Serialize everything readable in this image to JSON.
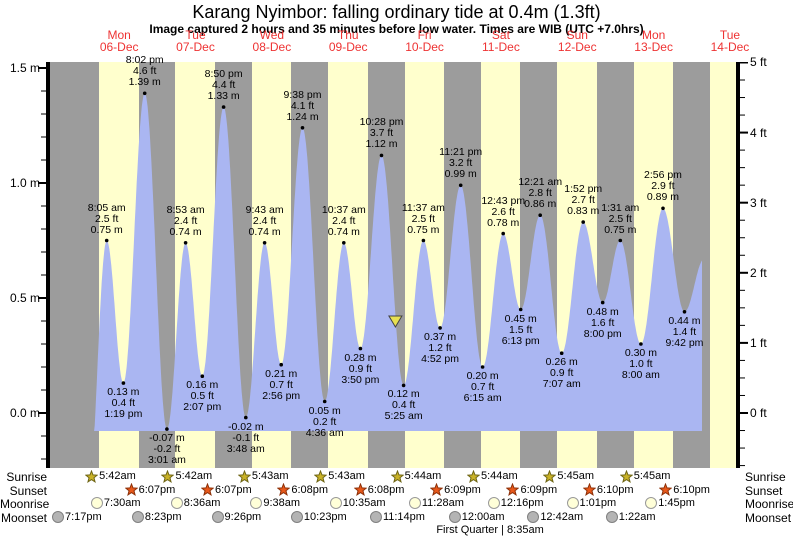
{
  "header": {
    "title": "Karang Nyimbor: falling  ordinary tide at 0.4m (1.3ft)",
    "subtitle": "Image captured 2 hours and 35 minutes before low water. Times are WIB (UTC +7.0hrs)"
  },
  "day_labels": [
    {
      "name": "Mon",
      "date": "06-Dec"
    },
    {
      "name": "Tue",
      "date": "07-Dec"
    },
    {
      "name": "Wed",
      "date": "08-Dec"
    },
    {
      "name": "Thu",
      "date": "09-Dec"
    },
    {
      "name": "Fri",
      "date": "10-Dec"
    },
    {
      "name": "Sat",
      "date": "11-Dec"
    },
    {
      "name": "Sun",
      "date": "12-Dec"
    },
    {
      "name": "Mon",
      "date": "13-Dec"
    },
    {
      "name": "Tue",
      "date": "14-Dec"
    }
  ],
  "axis": {
    "left_labels": [
      {
        "text": "1.5 m",
        "m": 1.5
      },
      {
        "text": "1.0 m",
        "m": 1.0
      },
      {
        "text": "0.5 m",
        "m": 0.5
      },
      {
        "text": "0.0 m",
        "m": 0.0
      }
    ],
    "right_labels": [
      {
        "text": "5 ft",
        "ft": 5
      },
      {
        "text": "4 ft",
        "ft": 4
      },
      {
        "text": "3 ft",
        "ft": 3
      },
      {
        "text": "2 ft",
        "ft": 2
      },
      {
        "text": "1 ft",
        "ft": 1
      },
      {
        "text": "0 ft",
        "ft": 0
      }
    ]
  },
  "chart_data": {
    "type": "area",
    "title": "Karang Nyimbor: falling ordinary tide at 0.4m (1.3ft)",
    "ylabel_left": "meters",
    "ylabel_right": "feet",
    "ylim_m": [
      -0.24,
      1.53
    ],
    "x_days": [
      "Mon 06-Dec",
      "Tue 07-Dec",
      "Wed 08-Dec",
      "Thu 09-Dec",
      "Fri 10-Dec",
      "Sat 11-Dec",
      "Sun 12-Dec",
      "Mon 13-Dec",
      "Tue 14-Dec"
    ],
    "tide_events": [
      {
        "day": 0,
        "time": "8:05 am",
        "ft_label": "2.5 ft",
        "m_label": "0.75 m",
        "m": 0.75,
        "type": "high"
      },
      {
        "day": 0,
        "time": "1:19 pm",
        "ft_label": "0.4 ft",
        "m_label": "0.13 m",
        "m": 0.13,
        "type": "low"
      },
      {
        "day": 0,
        "time": "8:02 pm",
        "ft_label": "4.6 ft",
        "m_label": "1.39 m",
        "m": 1.39,
        "type": "high"
      },
      {
        "day": 1,
        "time": "3:01 am",
        "ft_label": "-0.2 ft",
        "m_label": "-0.07 m",
        "m": -0.07,
        "type": "low"
      },
      {
        "day": 1,
        "time": "8:53 am",
        "ft_label": "2.4 ft",
        "m_label": "0.74 m",
        "m": 0.74,
        "type": "high"
      },
      {
        "day": 1,
        "time": "2:07 pm",
        "ft_label": "0.5 ft",
        "m_label": "0.16 m",
        "m": 0.16,
        "type": "low"
      },
      {
        "day": 1,
        "time": "8:50 pm",
        "ft_label": "4.4 ft",
        "m_label": "1.33 m",
        "m": 1.33,
        "type": "high"
      },
      {
        "day": 2,
        "time": "3:48 am",
        "ft_label": "-0.1 ft",
        "m_label": "-0.02 m",
        "m": -0.02,
        "type": "low"
      },
      {
        "day": 2,
        "time": "9:43 am",
        "ft_label": "2.4 ft",
        "m_label": "0.74 m",
        "m": 0.74,
        "type": "high"
      },
      {
        "day": 2,
        "time": "2:56 pm",
        "ft_label": "0.7 ft",
        "m_label": "0.21 m",
        "m": 0.21,
        "type": "low"
      },
      {
        "day": 2,
        "time": "9:38 pm",
        "ft_label": "4.1 ft",
        "m_label": "1.24 m",
        "m": 1.24,
        "type": "high"
      },
      {
        "day": 3,
        "time": "4:36 am",
        "ft_label": "0.2 ft",
        "m_label": "0.05 m",
        "m": 0.05,
        "type": "low"
      },
      {
        "day": 3,
        "time": "10:37 am",
        "ft_label": "2.4 ft",
        "m_label": "0.74 m",
        "m": 0.74,
        "type": "high"
      },
      {
        "day": 3,
        "time": "3:50 pm",
        "ft_label": "0.9 ft",
        "m_label": "0.28 m",
        "m": 0.28,
        "type": "low"
      },
      {
        "day": 3,
        "time": "10:28 pm",
        "ft_label": "3.7 ft",
        "m_label": "1.12 m",
        "m": 1.12,
        "type": "high"
      },
      {
        "day": 4,
        "time": "5:25 am",
        "ft_label": "0.4 ft",
        "m_label": "0.12 m",
        "m": 0.12,
        "type": "low"
      },
      {
        "day": 4,
        "time": "11:37 am",
        "ft_label": "2.5 ft",
        "m_label": "0.75 m",
        "m": 0.75,
        "type": "high"
      },
      {
        "day": 4,
        "time": "4:52 pm",
        "ft_label": "1.2 ft",
        "m_label": "0.37 m",
        "m": 0.37,
        "type": "low"
      },
      {
        "day": 4,
        "time": "11:21 pm",
        "ft_label": "3.2 ft",
        "m_label": "0.99 m",
        "m": 0.99,
        "type": "high"
      },
      {
        "day": 5,
        "time": "6:15 am",
        "ft_label": "0.7 ft",
        "m_label": "0.20 m",
        "m": 0.2,
        "type": "low"
      },
      {
        "day": 5,
        "time": "12:43 pm",
        "ft_label": "2.6 ft",
        "m_label": "0.78 m",
        "m": 0.78,
        "type": "high"
      },
      {
        "day": 5,
        "time": "6:13 pm",
        "ft_label": "1.5 ft",
        "m_label": "0.45 m",
        "m": 0.45,
        "type": "low"
      },
      {
        "day": 6,
        "time": "12:21 am",
        "ft_label": "2.8 ft",
        "m_label": "0.86 m",
        "m": 0.86,
        "type": "high"
      },
      {
        "day": 6,
        "time": "7:07 am",
        "ft_label": "0.9 ft",
        "m_label": "0.26 m",
        "m": 0.26,
        "type": "low"
      },
      {
        "day": 6,
        "time": "1:52 pm",
        "ft_label": "2.7 ft",
        "m_label": "0.83 m",
        "m": 0.83,
        "type": "high"
      },
      {
        "day": 6,
        "time": "8:00 pm",
        "ft_label": "1.6 ft",
        "m_label": "0.48 m",
        "m": 0.48,
        "type": "low"
      },
      {
        "day": 7,
        "time": "1:31 am",
        "ft_label": "2.5 ft",
        "m_label": "0.75 m",
        "m": 0.75,
        "type": "high"
      },
      {
        "day": 7,
        "time": "8:00 am",
        "ft_label": "1.0 ft",
        "m_label": "0.30 m",
        "m": 0.3,
        "type": "low"
      },
      {
        "day": 7,
        "time": "2:56 pm",
        "ft_label": "2.9 ft",
        "m_label": "0.89 m",
        "m": 0.89,
        "type": "high"
      },
      {
        "day": 7,
        "time": "9:42 pm",
        "ft_label": "1.4 ft",
        "m_label": "0.44 m",
        "m": 0.44,
        "type": "low"
      }
    ],
    "current_position": {
      "day": 4,
      "hour": 2.83,
      "height_m": 0.4
    }
  },
  "astro": {
    "rows": [
      {
        "label": "Sunrise",
        "icon": "sunrise-star",
        "events": [
          {
            "day": 0,
            "time": "5:42am"
          },
          {
            "day": 1,
            "time": "5:42am"
          },
          {
            "day": 2,
            "time": "5:43am"
          },
          {
            "day": 3,
            "time": "5:43am"
          },
          {
            "day": 4,
            "time": "5:44am"
          },
          {
            "day": 5,
            "time": "5:44am"
          },
          {
            "day": 6,
            "time": "5:45am"
          },
          {
            "day": 7,
            "time": "5:45am"
          }
        ]
      },
      {
        "label": "Sunset",
        "icon": "sunset-star",
        "events": [
          {
            "day": 0,
            "time": "6:07pm"
          },
          {
            "day": 1,
            "time": "6:07pm"
          },
          {
            "day": 2,
            "time": "6:08pm"
          },
          {
            "day": 3,
            "time": "6:08pm"
          },
          {
            "day": 4,
            "time": "6:09pm"
          },
          {
            "day": 5,
            "time": "6:09pm"
          },
          {
            "day": 6,
            "time": "6:10pm"
          },
          {
            "day": 7,
            "time": "6:10pm"
          }
        ]
      },
      {
        "label": "Moonrise",
        "icon": "moonrise-circle",
        "events": [
          {
            "day": 0,
            "time": "7:30am"
          },
          {
            "day": 1,
            "time": "8:36am"
          },
          {
            "day": 2,
            "time": "9:38am"
          },
          {
            "day": 3,
            "time": "10:35am"
          },
          {
            "day": 4,
            "time": "11:28am"
          },
          {
            "day": 5,
            "time": "12:16pm"
          },
          {
            "day": 6,
            "time": "1:01pm"
          },
          {
            "day": 7,
            "time": "1:45pm"
          }
        ]
      },
      {
        "label": "Moonset",
        "icon": "moonset-circle",
        "events": [
          {
            "day": -1,
            "time": "7:17pm"
          },
          {
            "day": 0,
            "time": "8:23pm"
          },
          {
            "day": 1,
            "time": "9:26pm"
          },
          {
            "day": 2,
            "time": "10:23pm"
          },
          {
            "day": 3,
            "time": "11:14pm"
          },
          {
            "day": 5,
            "time": "12:00am"
          },
          {
            "day": 6,
            "time": "12:42am"
          },
          {
            "day": 7,
            "time": "1:22am"
          }
        ]
      }
    ],
    "phase_note": {
      "text": "First Quarter | 8:35am",
      "day": 5,
      "hour": 8.58
    }
  },
  "colors": {
    "band_gray": "#9c9c9c",
    "band_yellow": "#ffffcd",
    "tide_fill": "#aab6f2",
    "day_label_red": "#ee3333",
    "axis_black": "#000000",
    "sunrise_star_fill": "#c9b227",
    "sunrise_star_stroke": "#6d6414",
    "sunset_star_fill": "#e8581a",
    "sunset_star_stroke": "#8c3008",
    "moonrise_fill": "#ffffd8",
    "moonrise_stroke": "#999999",
    "moonset_fill": "#b4b4b4",
    "moonset_stroke": "#808080",
    "marker_fill": "#e8e050",
    "marker_stroke": "#444444"
  }
}
